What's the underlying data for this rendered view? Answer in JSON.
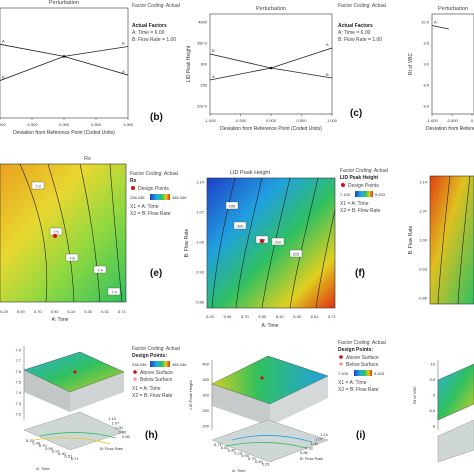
{
  "chart_data": [
    {
      "id": "b",
      "type": "line",
      "title": "Perturbation",
      "panel_label": "(b)",
      "xlabel": "Deviation from Reference Point (Coded Units)",
      "ylabel": "",
      "x_ticks": [
        "-1.000",
        "-0.500",
        "0.000",
        "0.500",
        "1.000"
      ],
      "xlim": [
        -1,
        1
      ],
      "ylim": [
        0,
        10
      ],
      "series": [
        {
          "name": "A",
          "x": [
            -1,
            0,
            1
          ],
          "y": [
            6.7,
            5.6,
            3.9
          ]
        },
        {
          "name": "B",
          "x": [
            -1,
            0,
            1
          ],
          "y": [
            3.4,
            5.6,
            6.5
          ]
        }
      ],
      "legend": {
        "heading": "Factor Coding: Actual",
        "title": "Actual Factors",
        "items": [
          "A: Time = 6.00",
          "B: Flow Rate = 1.00"
        ]
      }
    },
    {
      "id": "c",
      "type": "line",
      "title": "Perturbation",
      "panel_label": "(c)",
      "xlabel": "Deviation from Reference Point (Coded Units)",
      "ylabel": "LID Peak Height",
      "y_ticks": [
        "4000",
        "350.0",
        "300",
        "250",
        "200.0"
      ],
      "x_ticks": [
        "-1.000",
        "-0.500",
        "0.000",
        "0.500",
        "1.000"
      ],
      "xlim": [
        -1,
        1
      ],
      "ylim": [
        0,
        10
      ],
      "series": [
        {
          "name": "A",
          "x": [
            -1,
            0,
            1
          ],
          "y": [
            3.4,
            4.6,
            6.6
          ]
        },
        {
          "name": "B",
          "x": [
            -1,
            0,
            1
          ],
          "y": [
            6.0,
            4.6,
            3.6
          ]
        }
      ],
      "legend": {
        "heading": "Factor Coding: Actual",
        "title": "Actual Factors",
        "items": [
          "A: Time = 6.00",
          "B: Flow Rate = 1.00"
        ]
      }
    },
    {
      "id": "d",
      "type": "line",
      "title": "Perturbation",
      "xlabel": "Deviation from Referenc",
      "ylabel": "Rt of VBC",
      "y_ticks": [
        "10.0",
        "9.5",
        "9.0",
        "8.5",
        "8.0"
      ],
      "x_ticks": [
        "-1.000",
        "-0.500",
        "0"
      ],
      "series": [
        {
          "name": "A",
          "x": [
            -1,
            -0.2
          ],
          "y": [
            8.85,
            8.5
          ]
        }
      ]
    },
    {
      "id": "e",
      "type": "heatmap",
      "title": "Rs",
      "panel_label": "(e)",
      "xlabel": "A: Time",
      "x_ticks": [
        "5.29",
        "5.49",
        "5.70",
        "5.90",
        "6.10",
        "6.30",
        "6.51",
        "6.71"
      ],
      "contour_labels": [
        "7.3",
        "7.5",
        "7.6",
        "7.4",
        "7.4"
      ],
      "legend": {
        "heading": "Factor Coding: Actual",
        "title": "Rs",
        "items": [
          "Design Points",
          "X1 = A: Time",
          "X2 = B: Flow Rate"
        ],
        "range": [
          "238.436",
          "385.346"
        ]
      }
    },
    {
      "id": "f",
      "type": "heatmap",
      "title": "LID Peak Height",
      "panel_label": "(f)",
      "xlabel": "A: Time",
      "ylabel": "B: Flow Rate",
      "x_ticks": [
        "5.29",
        "5.49",
        "5.70",
        "5.90",
        "6.10",
        "6.30",
        "6.51",
        "6.71"
      ],
      "y_ticks": [
        "1.14",
        "1.07",
        "1.00",
        "0.93",
        "0.86"
      ],
      "contour_labels": [
        "295",
        "300",
        "305",
        "310",
        "315"
      ],
      "legend": {
        "heading": "Factor Coding: Actual",
        "title": "LID Peak Height",
        "items": [
          "Design Points",
          "X1 = A: Time",
          "X2 = B: Flow Rate"
        ],
        "range": [
          "7.105",
          "9.433"
        ]
      }
    },
    {
      "id": "g",
      "type": "heatmap",
      "ylabel": "B: Flow Rate",
      "y_ticks": [
        "1.14",
        "1.07",
        "1.00",
        "0.93",
        "0.86"
      ]
    },
    {
      "id": "h",
      "type": "surface",
      "panel_label": "(h)",
      "z_ticks": [
        "7.9",
        "7.7",
        "7.6",
        "7.5",
        "7.4",
        "7.3",
        "7.2"
      ],
      "x_axis_label": "A: Time",
      "y_axis_label": "B: Flow Rate",
      "x_ticks": [
        "5.29",
        "5.49",
        "5.70",
        "5.90",
        "6.10",
        "6.30",
        "6.51",
        "6.71"
      ],
      "y_ticks": [
        "1.14",
        "1.07",
        "1.00",
        "0.93",
        "0.86"
      ],
      "legend": {
        "heading": "Factor Coding: Actual",
        "items": [
          "Design Points:",
          "Above Surface",
          "Below Surface",
          "X1 = A: Time",
          "X2 = B: Flow Rate"
        ],
        "range": [
          "238.436",
          "385.346"
        ]
      }
    },
    {
      "id": "i",
      "type": "surface",
      "panel_label": "(i)",
      "z_label": "LID Peak Height",
      "z_ticks": [
        "400",
        "350",
        "300",
        "250",
        "200"
      ],
      "x_axis_label": "A: Time",
      "y_axis_label": "B: Flow Rate",
      "x_ticks": [
        "6.71",
        "6.51",
        "6.30",
        "6.10",
        "5.90",
        "5.70",
        "5.49",
        "5.29"
      ],
      "y_ticks": [
        "0.86",
        "0.93",
        "1.00",
        "1.07",
        "1.14"
      ],
      "legend": {
        "heading": "Factor Coding: Actual",
        "items": [
          "Design Points:",
          "Above Surface",
          "Below Surface",
          "X1 = A: Time",
          "X2 = B: Flow Rate"
        ],
        "range": [
          "7.105",
          "9.433"
        ]
      }
    },
    {
      "id": "j",
      "type": "surface",
      "z_label": "Rt of VBC",
      "z_ticks": [
        "10",
        "9.5",
        "9",
        "8.5",
        "8"
      ]
    }
  ],
  "colors": {
    "map_low": "#1f3fc8",
    "map_mid": "#28c04a",
    "map_high": "#e8d020",
    "map_top": "#e03010",
    "design_point": "#d01010",
    "line": "#222222"
  }
}
